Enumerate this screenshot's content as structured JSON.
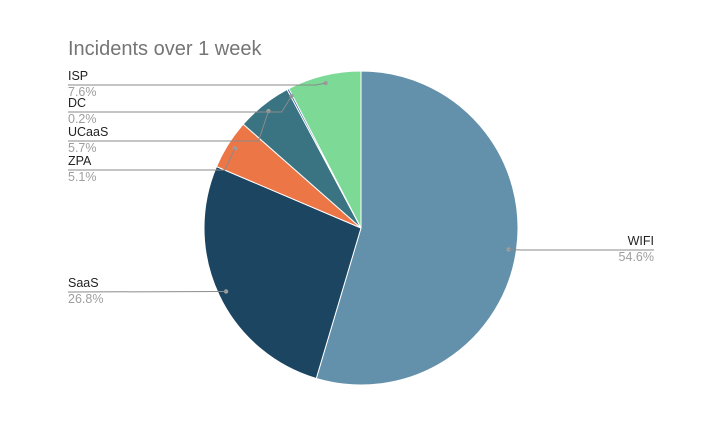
{
  "chart_data": {
    "type": "pie",
    "title": "Incidents over 1 week",
    "slices": [
      {
        "label": "WIFI",
        "value": 54.6,
        "value_label": "54.6%",
        "color": "#6390ab",
        "label_side": "right"
      },
      {
        "label": "SaaS",
        "value": 26.8,
        "value_label": "26.8%",
        "color": "#1b4560",
        "label_side": "left"
      },
      {
        "label": "ZPA",
        "value": 5.1,
        "value_label": "5.1%",
        "color": "#ed7647",
        "label_side": "left"
      },
      {
        "label": "UCaaS",
        "value": 5.7,
        "value_label": "5.7%",
        "color": "#3a7483",
        "label_side": "left"
      },
      {
        "label": "DC",
        "value": 0.2,
        "value_label": "0.2%",
        "color": "#2a5b9b",
        "label_side": "left"
      },
      {
        "label": "ISP",
        "value": 7.6,
        "value_label": "7.6%",
        "color": "#7cd996",
        "label_side": "left"
      }
    ],
    "start_angle": "12 o'clock",
    "direction": "clockwise",
    "legend": "none"
  }
}
